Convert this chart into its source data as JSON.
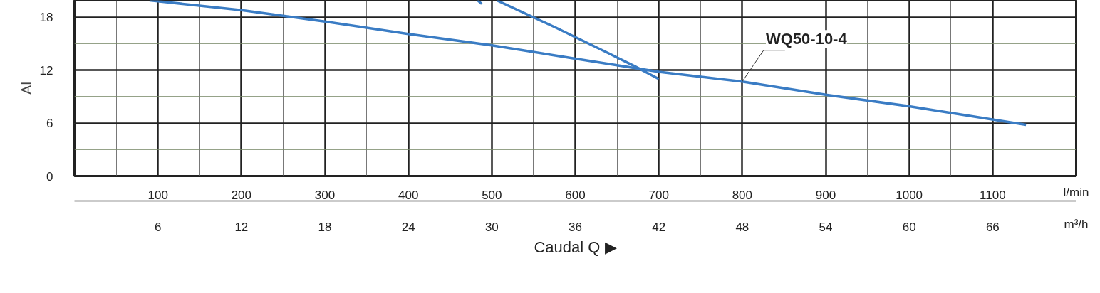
{
  "chart_data": {
    "type": "line",
    "ylabel": "Al",
    "xlabel": "l/min",
    "x2label": "m³/h",
    "annotations": [
      "Caudal Q ▶"
    ],
    "xlim": [
      0,
      1200
    ],
    "xticks": [
      100,
      200,
      300,
      400,
      500,
      600,
      700,
      800,
      900,
      1000,
      1100
    ],
    "x2lim": [
      0,
      72
    ],
    "x2ticks": [
      6,
      12,
      18,
      24,
      30,
      36,
      42,
      48,
      54,
      60,
      66
    ],
    "ylim": [
      0,
      19.9
    ],
    "yticks": [
      0,
      6,
      12,
      18
    ],
    "grid": true,
    "marker": "none",
    "line_style": "solid",
    "series": [
      {
        "name": "WQ50-10-4",
        "color": "#3a7cc4",
        "x": [
          90,
          200,
          300,
          400,
          500,
          600,
          700,
          800,
          900,
          1000,
          1140
        ],
        "values": [
          19.9,
          18.8,
          17.5,
          16.1,
          14.8,
          13.3,
          11.8,
          10.7,
          9.2,
          7.9,
          5.8
        ]
      },
      {
        "color": "#3a7cc4",
        "x": [
          506,
          577,
          640,
          672,
          700
        ],
        "values": [
          19.9,
          16.8,
          13.9,
          12.4,
          11.0
        ]
      },
      {
        "color": "#3a7cc4",
        "x": [
          483,
          488
        ],
        "values": [
          19.9,
          19.5
        ]
      }
    ]
  }
}
